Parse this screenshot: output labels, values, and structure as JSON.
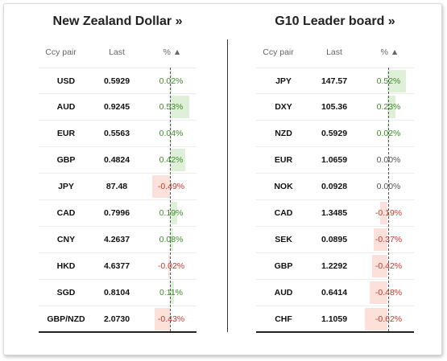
{
  "left": {
    "title": "New Zealand Dollar »",
    "headers": {
      "pair": "Ccy pair",
      "last": "Last",
      "pct": "% ▲"
    },
    "rows": [
      {
        "pair": "USD",
        "last": "0.5929",
        "pct": "0.02%",
        "value": 0.02
      },
      {
        "pair": "AUD",
        "last": "0.9245",
        "pct": "0.53%",
        "value": 0.53
      },
      {
        "pair": "EUR",
        "last": "0.5563",
        "pct": "0.04%",
        "value": 0.04
      },
      {
        "pair": "GBP",
        "last": "0.4824",
        "pct": "0.42%",
        "value": 0.42
      },
      {
        "pair": "JPY",
        "last": "87.48",
        "pct": "-0.49%",
        "value": -0.49
      },
      {
        "pair": "CAD",
        "last": "0.7996",
        "pct": "0.19%",
        "value": 0.19
      },
      {
        "pair": "CNY",
        "last": "4.2637",
        "pct": "0.08%",
        "value": 0.08
      },
      {
        "pair": "HKD",
        "last": "4.6377",
        "pct": "-0.02%",
        "value": -0.02
      },
      {
        "pair": "SGD",
        "last": "0.8104",
        "pct": "0.11%",
        "value": 0.11
      },
      {
        "pair": "GBP/NZD",
        "last": "2.0730",
        "pct": "-0.43%",
        "value": -0.43
      }
    ]
  },
  "right": {
    "title": "G10 Leader board »",
    "headers": {
      "pair": "Ccy pair",
      "last": "Last",
      "pct": "% ▲"
    },
    "rows": [
      {
        "pair": "JPY",
        "last": "147.57",
        "pct": "0.52%",
        "value": 0.52
      },
      {
        "pair": "DXY",
        "last": "105.36",
        "pct": "0.23%",
        "value": 0.23
      },
      {
        "pair": "NZD",
        "last": "0.5929",
        "pct": "0.02%",
        "value": 0.02
      },
      {
        "pair": "EUR",
        "last": "1.0659",
        "pct": "0.00%",
        "value": 0.0
      },
      {
        "pair": "NOK",
        "last": "0.0928",
        "pct": "0.00%",
        "value": 0.0
      },
      {
        "pair": "CAD",
        "last": "1.3485",
        "pct": "-0.19%",
        "value": -0.19
      },
      {
        "pair": "SEK",
        "last": "0.0895",
        "pct": "-0.37%",
        "value": -0.37
      },
      {
        "pair": "GBP",
        "last": "1.2292",
        "pct": "-0.42%",
        "value": -0.42
      },
      {
        "pair": "AUD",
        "last": "0.6414",
        "pct": "-0.48%",
        "value": -0.48
      },
      {
        "pair": "CHF",
        "last": "1.1059",
        "pct": "-0.62%",
        "value": -0.62
      }
    ]
  },
  "colors": {
    "positive_bar": "#dff0d9",
    "negative_bar": "#fbe1d9",
    "positive_text": "#3d8b2a",
    "negative_text": "#c0392b"
  }
}
